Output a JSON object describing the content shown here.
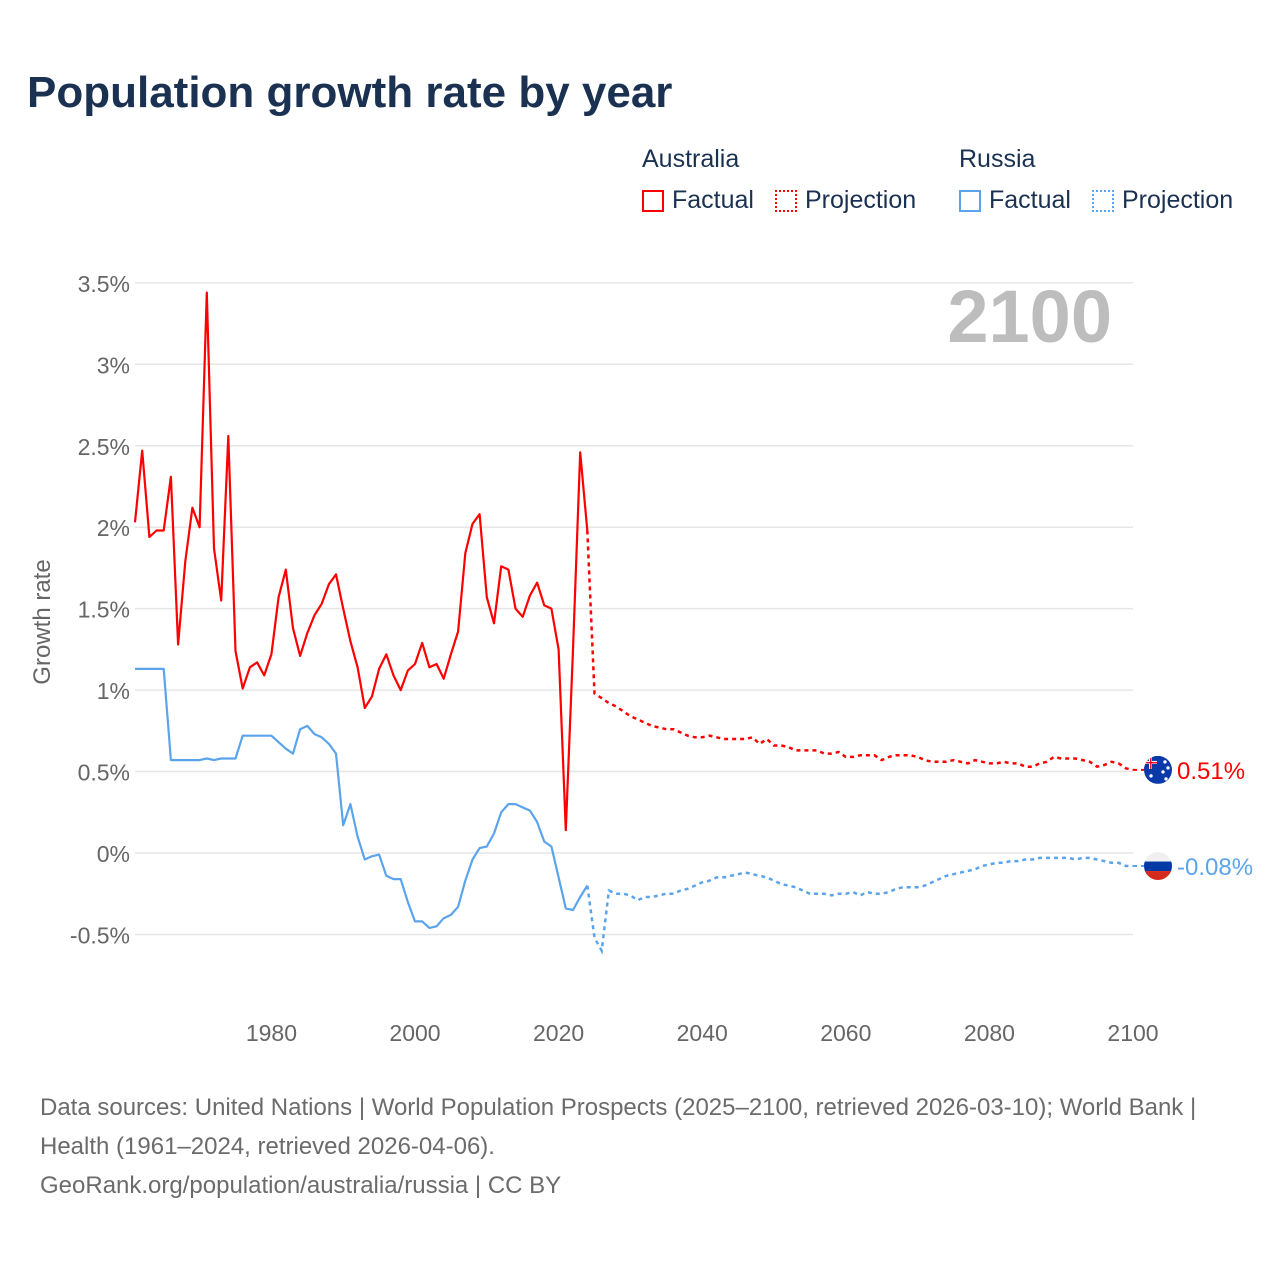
{
  "title": "Population growth rate by year",
  "legend": {
    "groups": [
      {
        "name": "Australia",
        "factual": "Factual",
        "projection": "Projection",
        "color": "#ff0000"
      },
      {
        "name": "Russia",
        "factual": "Factual",
        "projection": "Projection",
        "color": "#5ba4ec"
      }
    ]
  },
  "year_watermark": "2100",
  "footer": {
    "sources": "Data sources: United Nations | World Population Prospects (2025–2100, retrieved 2026-03-10); World Bank | Health (1961–2024, retrieved 2026-04-06).",
    "credit": "GeoRank.org/population/australia/russia | CC BY"
  },
  "chart_data": {
    "type": "line",
    "title": "Population growth rate by year",
    "xlabel": "",
    "ylabel": "Growth rate",
    "xlim": [
      1961,
      2100
    ],
    "ylim": [
      -0.5,
      3.5
    ],
    "yticks": [
      -0.5,
      0,
      0.5,
      1,
      1.5,
      2,
      2.5,
      3,
      3.5
    ],
    "ytick_labels": [
      "-0.5%",
      "0%",
      "0.5%",
      "1%",
      "1.5%",
      "2%",
      "2.5%",
      "3%",
      "3.5%"
    ],
    "xticks": [
      1980,
      2000,
      2020,
      2040,
      2060,
      2080,
      2100
    ],
    "xtick_labels": [
      "1980",
      "2000",
      "2020",
      "2040",
      "2060",
      "2080",
      "2100"
    ],
    "grid": true,
    "legend_position": "top-right",
    "series": [
      {
        "name": "Australia",
        "color": "#ff0000",
        "end_label": "0.51%",
        "factual_start": 1961,
        "factual": [
          2.03,
          2.47,
          1.94,
          1.98,
          1.98,
          2.31,
          1.28,
          1.79,
          2.12,
          2.0,
          3.44,
          1.87,
          1.55,
          2.56,
          1.24,
          1.01,
          1.14,
          1.17,
          1.09,
          1.22,
          1.57,
          1.74,
          1.38,
          1.21,
          1.35,
          1.46,
          1.53,
          1.65,
          1.71,
          1.5,
          1.3,
          1.14,
          0.89,
          0.96,
          1.13,
          1.22,
          1.09,
          1.0,
          1.12,
          1.16,
          1.29,
          1.14,
          1.16,
          1.07,
          1.22,
          1.36,
          1.84,
          2.02,
          2.08,
          1.57,
          1.41,
          1.76,
          1.74,
          1.5,
          1.45,
          1.58,
          1.66,
          1.52,
          1.5,
          1.25,
          0.14,
          1.25,
          2.46,
          1.98
        ],
        "projection_start": 2024,
        "projection": [
          1.98,
          0.98,
          0.95,
          0.92,
          0.9,
          0.87,
          0.84,
          0.82,
          0.8,
          0.78,
          0.77,
          0.76,
          0.76,
          0.74,
          0.72,
          0.71,
          0.71,
          0.72,
          0.71,
          0.7,
          0.7,
          0.7,
          0.7,
          0.71,
          0.67,
          0.7,
          0.66,
          0.66,
          0.65,
          0.63,
          0.63,
          0.63,
          0.63,
          0.61,
          0.61,
          0.62,
          0.59,
          0.59,
          0.6,
          0.6,
          0.6,
          0.57,
          0.59,
          0.6,
          0.6,
          0.6,
          0.59,
          0.57,
          0.56,
          0.56,
          0.56,
          0.57,
          0.56,
          0.55,
          0.57,
          0.56,
          0.55,
          0.55,
          0.56,
          0.55,
          0.55,
          0.53,
          0.53,
          0.55,
          0.56,
          0.59,
          0.58,
          0.58,
          0.58,
          0.57,
          0.56,
          0.53,
          0.54,
          0.56,
          0.55,
          0.52,
          0.51
        ]
      },
      {
        "name": "Russia",
        "color": "#5ba4ec",
        "end_label": "-0.08%",
        "factual_start": 1961,
        "factual": [
          1.13,
          1.13,
          1.13,
          1.13,
          1.13,
          0.57,
          0.57,
          0.57,
          0.57,
          0.57,
          0.58,
          0.57,
          0.58,
          0.58,
          0.58,
          0.72,
          0.72,
          0.72,
          0.72,
          0.72,
          0.68,
          0.64,
          0.61,
          0.76,
          0.78,
          0.73,
          0.71,
          0.67,
          0.61,
          0.17,
          0.3,
          0.1,
          -0.04,
          -0.02,
          -0.01,
          -0.14,
          -0.16,
          -0.16,
          -0.3,
          -0.42,
          -0.42,
          -0.46,
          -0.45,
          -0.4,
          -0.38,
          -0.33,
          -0.17,
          -0.04,
          0.03,
          0.04,
          0.12,
          0.25,
          0.3,
          0.3,
          0.28,
          0.26,
          0.19,
          0.07,
          0.04,
          -0.15,
          -0.34,
          -0.35,
          -0.27,
          -0.2
        ],
        "projection_start": 2024,
        "projection": [
          -0.2,
          -0.52,
          -0.6,
          -0.23,
          -0.25,
          -0.25,
          -0.26,
          -0.29,
          -0.27,
          -0.27,
          -0.26,
          -0.25,
          -0.25,
          -0.23,
          -0.22,
          -0.2,
          -0.18,
          -0.17,
          -0.15,
          -0.15,
          -0.14,
          -0.13,
          -0.12,
          -0.13,
          -0.14,
          -0.15,
          -0.17,
          -0.19,
          -0.2,
          -0.21,
          -0.23,
          -0.25,
          -0.25,
          -0.25,
          -0.26,
          -0.25,
          -0.25,
          -0.24,
          -0.26,
          -0.24,
          -0.25,
          -0.25,
          -0.24,
          -0.22,
          -0.21,
          -0.21,
          -0.21,
          -0.2,
          -0.18,
          -0.16,
          -0.14,
          -0.13,
          -0.12,
          -0.11,
          -0.1,
          -0.08,
          -0.07,
          -0.06,
          -0.06,
          -0.05,
          -0.05,
          -0.04,
          -0.04,
          -0.03,
          -0.03,
          -0.03,
          -0.03,
          -0.03,
          -0.04,
          -0.03,
          -0.03,
          -0.04,
          -0.05,
          -0.06,
          -0.06,
          -0.08,
          -0.08
        ]
      }
    ]
  }
}
